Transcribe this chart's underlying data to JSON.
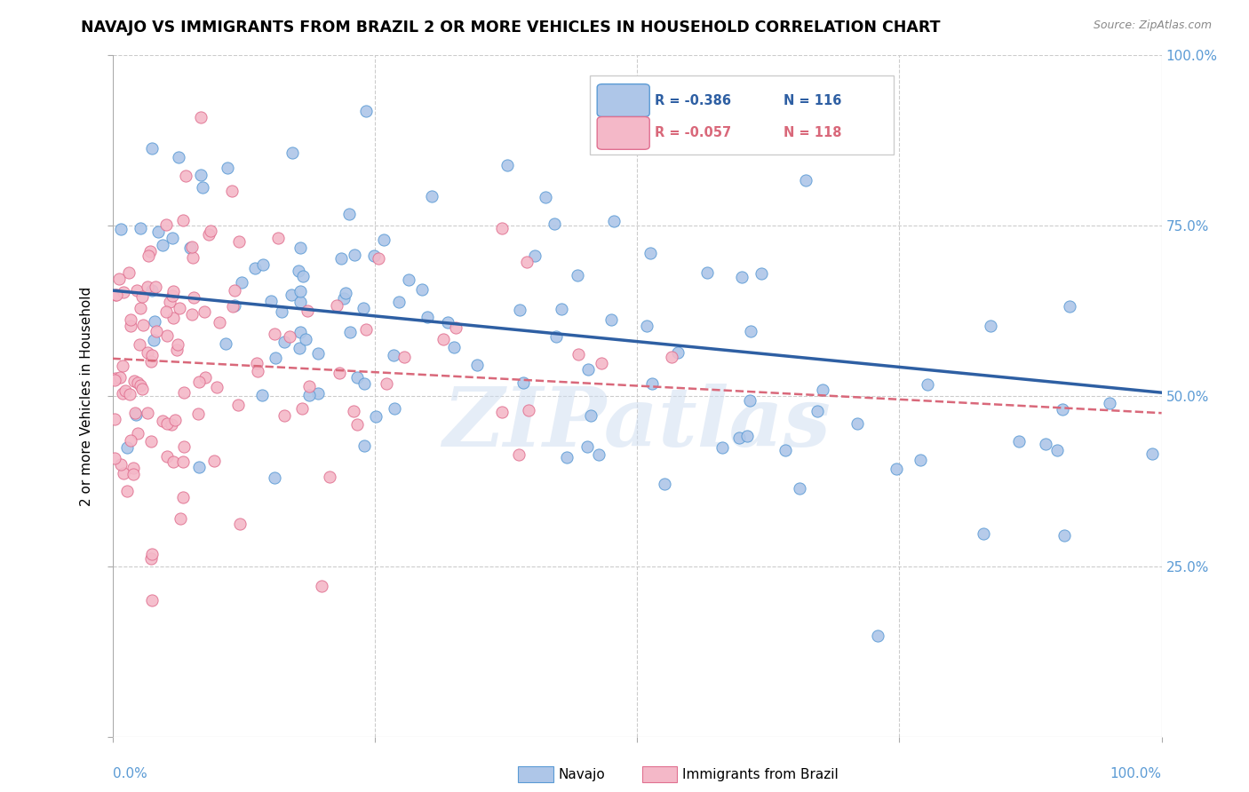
{
  "title": "NAVAJO VS IMMIGRANTS FROM BRAZIL 2 OR MORE VEHICLES IN HOUSEHOLD CORRELATION CHART",
  "source": "Source: ZipAtlas.com",
  "ylabel": "2 or more Vehicles in Household",
  "navajo_R": -0.386,
  "navajo_N": 116,
  "brazil_R": -0.057,
  "brazil_N": 118,
  "navajo_color": "#aec6e8",
  "navajo_edge_color": "#5b9bd5",
  "brazil_color": "#f4b8c8",
  "brazil_edge_color": "#e07090",
  "navajo_line_color": "#2e5fa3",
  "brazil_line_color": "#d9687a",
  "watermark": "ZIPatlas",
  "tick_color": "#5b9bd5",
  "xlim": [
    0.0,
    1.0
  ],
  "ylim": [
    0.0,
    1.0
  ],
  "nav_line_start_y": 0.655,
  "nav_line_end_y": 0.505,
  "bra_line_start_y": 0.555,
  "bra_line_end_y": 0.475
}
